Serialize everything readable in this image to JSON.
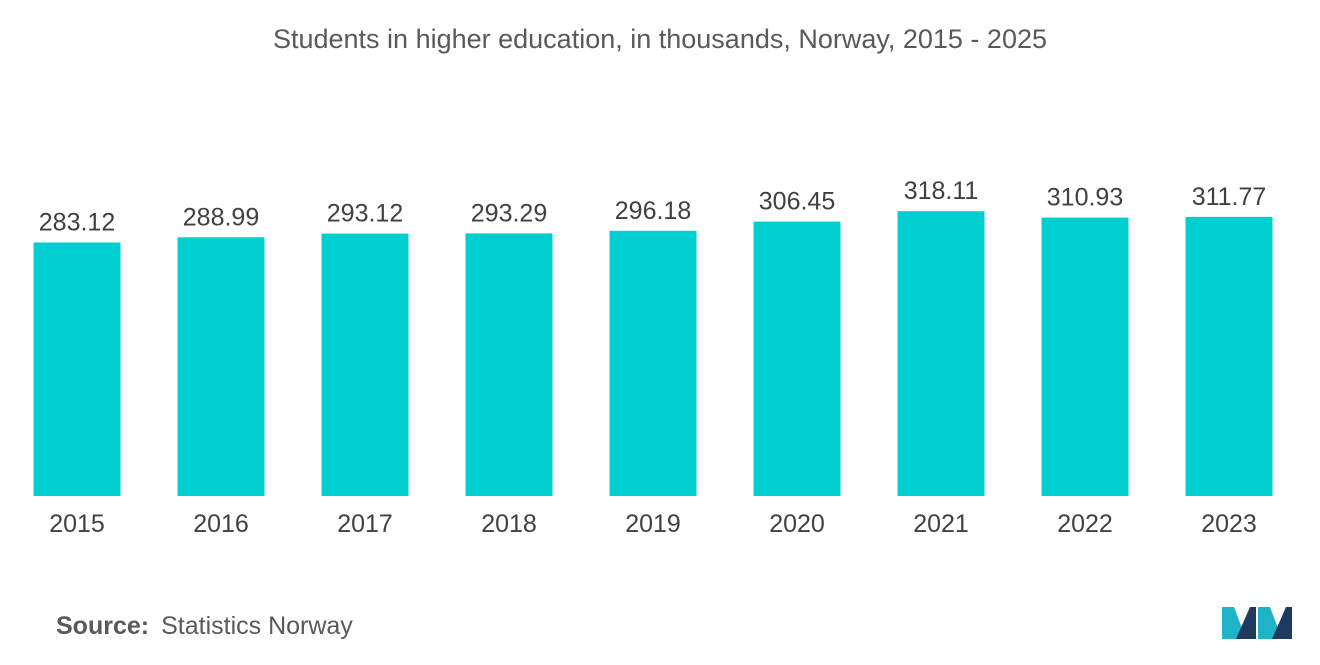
{
  "chart_data": {
    "type": "bar",
    "title": "Students in higher education, in thousands, Norway, 2015 - 2025",
    "categories": [
      "2015",
      "2016",
      "2017",
      "2018",
      "2019",
      "2020",
      "2021",
      "2022",
      "2023"
    ],
    "values": [
      283.12,
      288.99,
      293.12,
      293.29,
      296.18,
      306.45,
      318.11,
      310.93,
      311.77
    ],
    "value_labels": [
      "283.12",
      "288.99",
      "293.12",
      "293.29",
      "296.18",
      "306.45",
      "318.11",
      "310.93",
      "311.77"
    ],
    "xlabel": "",
    "ylabel": "",
    "grid": false,
    "legend": "none",
    "bar_color": "#00CED1"
  },
  "footer": {
    "source_label": "Source:",
    "source_value": "Statistics Norway"
  },
  "logo": {
    "icon": "mordor-intelligence-logo-icon",
    "colors": [
      "#1E3A5F",
      "#1FB3C7"
    ]
  }
}
